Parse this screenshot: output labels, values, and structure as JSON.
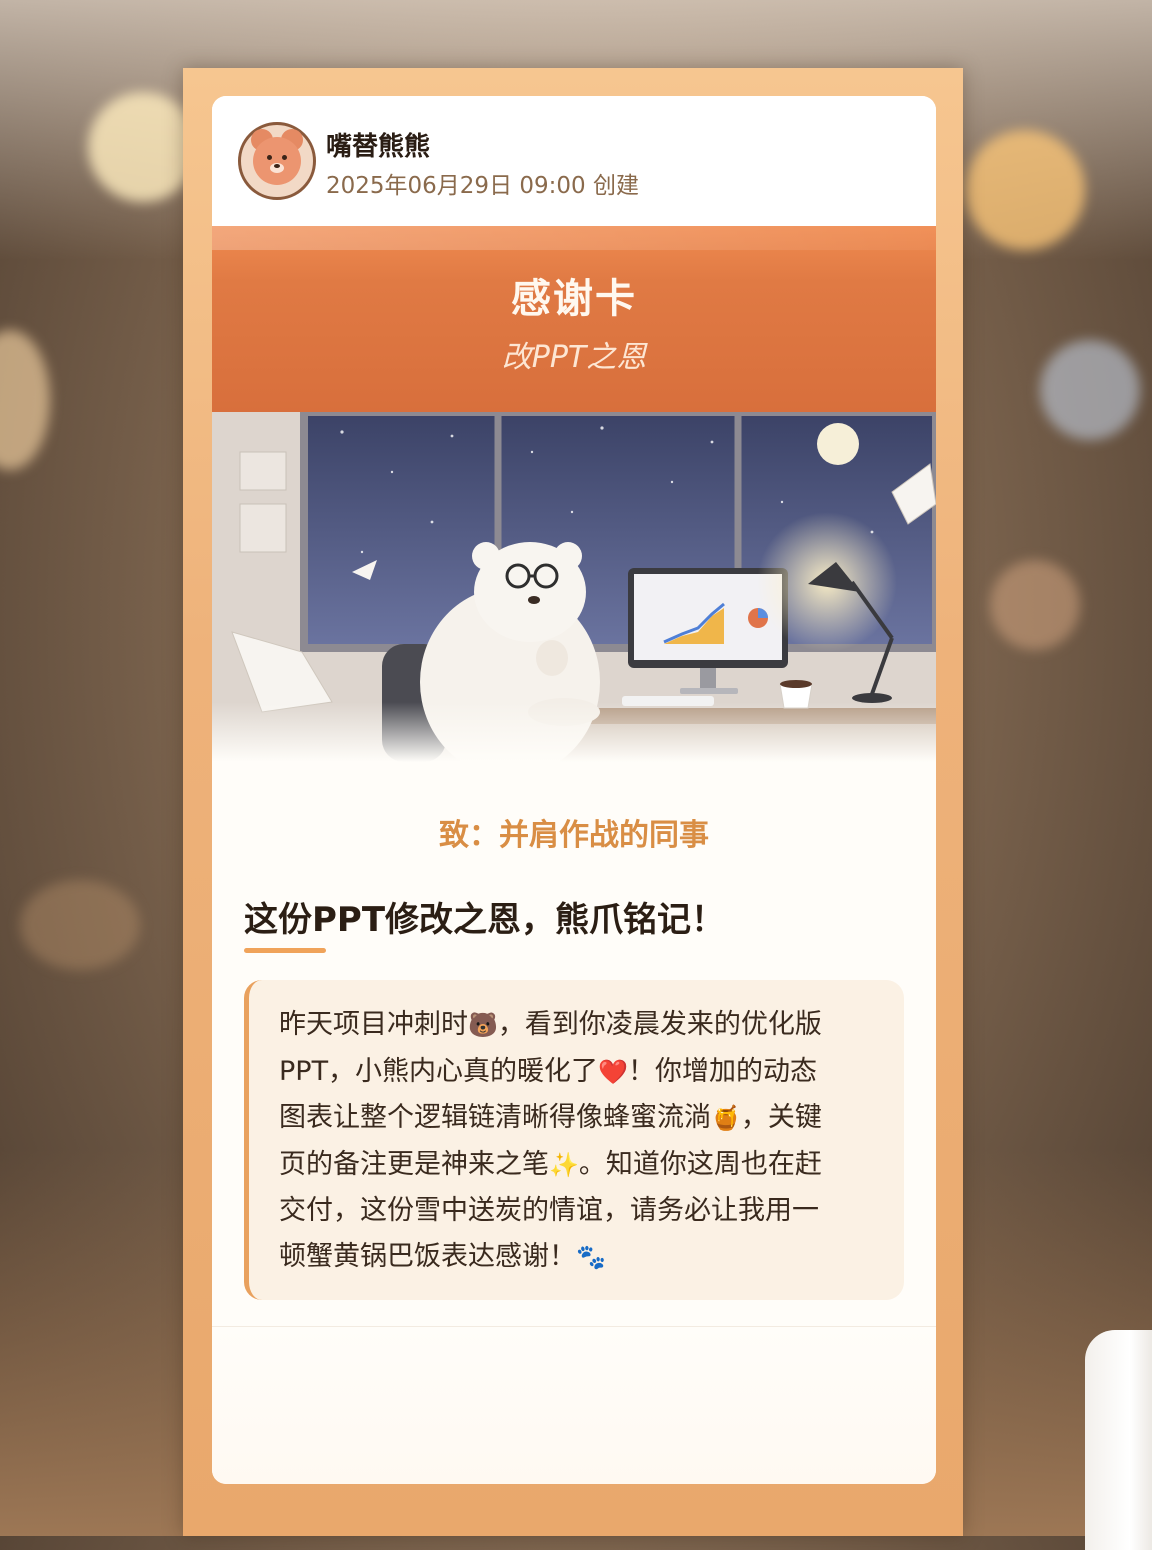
{
  "post": {
    "author": "嘴替熊熊",
    "created": "2025年06月29日 09:00 创建"
  },
  "banner": {
    "title": "感谢卡",
    "subtitle": "改PPT之恩"
  },
  "card": {
    "recipient": "致：并肩作战的同事",
    "headline": "这份PPT修改之恩，熊爪铭记！",
    "message_lines": [
      [
        "昨天项目冲刺时",
        "🐻",
        "，看到你凌晨发来的优化版"
      ],
      [
        "PPT，小熊内心真的暖化了",
        "❤️",
        "！你增加的动态"
      ],
      [
        "图表让整个逻辑链清晰得像蜂蜜流淌",
        "🍯",
        "，关键"
      ],
      [
        "页的备注更是神来之笔",
        "✨",
        "。知道你这周也在赶"
      ],
      [
        "交付，这份雪中送炭的情谊，请务必让我用一",
        "",
        ""
      ],
      [
        "顿蟹黄锅巴饭表达感谢！",
        "🐾",
        ""
      ]
    ]
  },
  "colors": {
    "banner": "#e07a44",
    "accent": "#d98e45",
    "frame": "#eeb27a"
  },
  "icons": {
    "avatar": "bear-avatar-icon"
  }
}
